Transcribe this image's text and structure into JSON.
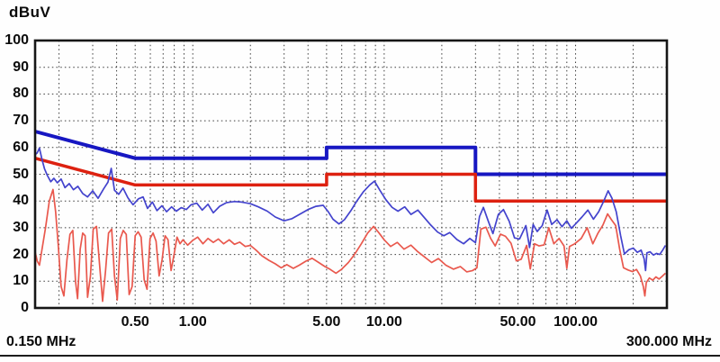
{
  "header": {
    "y_axis_unit": "dBuV"
  },
  "footer": {
    "x_start_label": "0.150 MHz",
    "x_end_label": "300.000 MHz"
  },
  "colors": {
    "limit_blue": "#1717c2",
    "limit_red": "#dd2110",
    "trace_blue": "#4343cd",
    "trace_red": "#e9584d",
    "grid": "#3a3a3a",
    "frame": "#161616"
  },
  "chart_data": {
    "type": "line",
    "title": "",
    "xlabel": "MHz",
    "ylabel": "dBuV",
    "x_scale": "log",
    "x_range_mhz": [
      0.15,
      300
    ],
    "y_range_dbuv": [
      0,
      100
    ],
    "grid": true,
    "legend": "none",
    "y_ticks": [
      {
        "label": "100",
        "value": 100
      },
      {
        "label": "90",
        "value": 90
      },
      {
        "label": "80",
        "value": 80
      },
      {
        "label": "70",
        "value": 70
      },
      {
        "label": "60",
        "value": 60
      },
      {
        "label": "50",
        "value": 50
      },
      {
        "label": "40",
        "value": 40
      },
      {
        "label": "30",
        "value": 30
      },
      {
        "label": "20",
        "value": 20
      },
      {
        "label": "10",
        "value": 10
      },
      {
        "label": "0",
        "value": 0
      }
    ],
    "x_ticks": [
      {
        "label": "0.50",
        "mhz": 0.5
      },
      {
        "label": "1.00",
        "mhz": 1.0
      },
      {
        "label": "5.00",
        "mhz": 5.0
      },
      {
        "label": "10.00",
        "mhz": 10.0
      },
      {
        "label": "50.00",
        "mhz": 50.0
      },
      {
        "label": "100.00",
        "mhz": 100.0
      }
    ],
    "x_gridlines_mhz": [
      0.2,
      0.3,
      0.4,
      0.5,
      0.6,
      0.7,
      0.8,
      0.9,
      1,
      2,
      3,
      4,
      5,
      6,
      7,
      8,
      9,
      10,
      20,
      30,
      40,
      50,
      60,
      70,
      80,
      90,
      100,
      200
    ],
    "y_gridlines_dbuv": [
      10,
      20,
      30,
      40,
      50,
      60,
      70,
      80,
      90
    ],
    "series": [
      {
        "name": "limit-line-upper-blue",
        "role": "limit",
        "color_key": "limit_blue",
        "width": 4,
        "points": [
          [
            0.15,
            66
          ],
          [
            0.5,
            56
          ],
          [
            5,
            56
          ],
          [
            5,
            60
          ],
          [
            30,
            60
          ],
          [
            30,
            50
          ],
          [
            300,
            50
          ]
        ]
      },
      {
        "name": "limit-line-lower-red",
        "role": "limit",
        "color_key": "limit_red",
        "width": 3.5,
        "points": [
          [
            0.15,
            56
          ],
          [
            0.5,
            46
          ],
          [
            5,
            46
          ],
          [
            5,
            50
          ],
          [
            30,
            50
          ],
          [
            30,
            40
          ],
          [
            300,
            40
          ]
        ]
      },
      {
        "name": "measurement-trace-blue",
        "role": "trace",
        "color_key": "trace_blue",
        "width": 1.7,
        "points": [
          [
            0.15,
            57.3
          ],
          [
            0.154,
            58.0
          ],
          [
            0.158,
            59.8
          ],
          [
            0.163,
            55.5
          ],
          [
            0.168,
            52.0
          ],
          [
            0.174,
            49.5
          ],
          [
            0.181,
            47.2
          ],
          [
            0.188,
            48.5
          ],
          [
            0.196,
            46.8
          ],
          [
            0.205,
            48.2
          ],
          [
            0.215,
            45.0
          ],
          [
            0.226,
            46.5
          ],
          [
            0.238,
            44.2
          ],
          [
            0.251,
            45.5
          ],
          [
            0.266,
            42.8
          ],
          [
            0.282,
            41.5
          ],
          [
            0.3,
            43.8
          ],
          [
            0.32,
            41.0
          ],
          [
            0.342,
            44.5
          ],
          [
            0.36,
            47.0
          ],
          [
            0.375,
            52.2
          ],
          [
            0.39,
            44.0
          ],
          [
            0.41,
            42.5
          ],
          [
            0.432,
            44.8
          ],
          [
            0.458,
            41.2
          ],
          [
            0.487,
            38.6
          ],
          [
            0.52,
            40.8
          ],
          [
            0.55,
            41.5
          ],
          [
            0.58,
            37.2
          ],
          [
            0.615,
            39.6
          ],
          [
            0.65,
            36.4
          ],
          [
            0.69,
            38.2
          ],
          [
            0.73,
            36.0
          ],
          [
            0.775,
            37.8
          ],
          [
            0.82,
            36.2
          ],
          [
            0.87,
            37.5
          ],
          [
            0.925,
            36.8
          ],
          [
            0.98,
            38.6
          ],
          [
            1.05,
            39.2
          ],
          [
            1.12,
            36.6
          ],
          [
            1.2,
            38.8
          ],
          [
            1.28,
            35.6
          ],
          [
            1.38,
            38.0
          ],
          [
            1.5,
            39.4
          ],
          [
            1.65,
            39.8
          ],
          [
            1.8,
            39.6
          ],
          [
            2.0,
            39.0
          ],
          [
            2.2,
            37.8
          ],
          [
            2.45,
            36.2
          ],
          [
            2.7,
            34.0
          ],
          [
            3.0,
            32.6
          ],
          [
            3.3,
            33.4
          ],
          [
            3.65,
            35.2
          ],
          [
            4.0,
            36.8
          ],
          [
            4.4,
            38.0
          ],
          [
            4.8,
            38.4
          ],
          [
            5.1,
            36.0
          ],
          [
            5.4,
            33.2
          ],
          [
            5.8,
            31.4
          ],
          [
            6.2,
            33.0
          ],
          [
            6.7,
            36.4
          ],
          [
            7.2,
            40.0
          ],
          [
            7.8,
            43.5
          ],
          [
            8.4,
            46.0
          ],
          [
            8.9,
            47.4
          ],
          [
            9.5,
            44.0
          ],
          [
            10.2,
            40.5
          ],
          [
            11.0,
            37.6
          ],
          [
            11.8,
            36.2
          ],
          [
            12.8,
            37.8
          ],
          [
            13.8,
            35.0
          ],
          [
            15.0,
            36.6
          ],
          [
            16.2,
            33.8
          ],
          [
            17.5,
            31.0
          ],
          [
            19.0,
            28.4
          ],
          [
            20.5,
            27.0
          ],
          [
            22.0,
            28.2
          ],
          [
            24.0,
            25.6
          ],
          [
            26.0,
            24.0
          ],
          [
            28.0,
            26.0
          ],
          [
            30.0,
            24.4
          ],
          [
            31.5,
            34.2
          ],
          [
            33.0,
            37.6
          ],
          [
            35.0,
            32.4
          ],
          [
            37.0,
            27.8
          ],
          [
            39.5,
            35.0
          ],
          [
            42.0,
            36.8
          ],
          [
            45.0,
            32.4
          ],
          [
            48.0,
            26.2
          ],
          [
            51.0,
            25.8
          ],
          [
            55.0,
            30.8
          ],
          [
            57.5,
            22.6
          ],
          [
            60.0,
            31.2
          ],
          [
            63.0,
            28.6
          ],
          [
            67.0,
            30.8
          ],
          [
            71.0,
            36.6
          ],
          [
            75.0,
            31.2
          ],
          [
            80.0,
            33.0
          ],
          [
            85.0,
            30.4
          ],
          [
            90.0,
            32.6
          ],
          [
            95.0,
            29.8
          ],
          [
            100,
            31.4
          ],
          [
            108,
            34.0
          ],
          [
            116,
            36.6
          ],
          [
            124,
            33.2
          ],
          [
            132,
            36.0
          ],
          [
            140,
            39.8
          ],
          [
            148,
            43.8
          ],
          [
            155,
            41.0
          ],
          [
            163,
            36.0
          ],
          [
            172,
            27.0
          ],
          [
            180,
            20.2
          ],
          [
            190,
            21.8
          ],
          [
            200,
            22.4
          ],
          [
            210,
            20.8
          ],
          [
            220,
            21.6
          ],
          [
            228,
            18.4
          ],
          [
            232,
            14.0
          ],
          [
            236,
            20.6
          ],
          [
            245,
            21.0
          ],
          [
            255,
            19.8
          ],
          [
            265,
            20.4
          ],
          [
            275,
            20.0
          ],
          [
            285,
            21.6
          ],
          [
            295,
            23.4
          ]
        ]
      },
      {
        "name": "measurement-trace-red",
        "role": "trace",
        "color_key": "trace_red",
        "width": 1.7,
        "points": [
          [
            0.15,
            21.0
          ],
          [
            0.154,
            17.5
          ],
          [
            0.158,
            16.0
          ],
          [
            0.163,
            22.0
          ],
          [
            0.17,
            30.0
          ],
          [
            0.178,
            40.0
          ],
          [
            0.186,
            44.3
          ],
          [
            0.192,
            36.0
          ],
          [
            0.198,
            24.0
          ],
          [
            0.205,
            8.0
          ],
          [
            0.212,
            4.5
          ],
          [
            0.22,
            18.0
          ],
          [
            0.228,
            27.5
          ],
          [
            0.236,
            29.0
          ],
          [
            0.244,
            10.0
          ],
          [
            0.25,
            3.5
          ],
          [
            0.258,
            22.0
          ],
          [
            0.266,
            28.0
          ],
          [
            0.274,
            27.0
          ],
          [
            0.282,
            4.0
          ],
          [
            0.292,
            12.0
          ],
          [
            0.302,
            29.5
          ],
          [
            0.314,
            30.5
          ],
          [
            0.326,
            16.0
          ],
          [
            0.338,
            2.5
          ],
          [
            0.35,
            14.0
          ],
          [
            0.363,
            28.0
          ],
          [
            0.377,
            29.5
          ],
          [
            0.39,
            12.0
          ],
          [
            0.403,
            3.0
          ],
          [
            0.418,
            26.0
          ],
          [
            0.433,
            29.0
          ],
          [
            0.449,
            27.5
          ],
          [
            0.465,
            5.0
          ],
          [
            0.482,
            8.0
          ],
          [
            0.5,
            27.0
          ],
          [
            0.518,
            28.5
          ],
          [
            0.537,
            26.5
          ],
          [
            0.557,
            10.5
          ],
          [
            0.577,
            7.0
          ],
          [
            0.598,
            26.0
          ],
          [
            0.62,
            28.0
          ],
          [
            0.643,
            25.0
          ],
          [
            0.667,
            12.0
          ],
          [
            0.691,
            18.0
          ],
          [
            0.716,
            27.0
          ],
          [
            0.742,
            25.5
          ],
          [
            0.77,
            14.0
          ],
          [
            0.798,
            20.0
          ],
          [
            0.827,
            26.5
          ],
          [
            0.857,
            24.0
          ],
          [
            0.889,
            25.5
          ],
          [
            0.94,
            23.5
          ],
          [
            1.0,
            25.3
          ],
          [
            1.06,
            26.5
          ],
          [
            1.13,
            24.0
          ],
          [
            1.2,
            26.0
          ],
          [
            1.28,
            24.5
          ],
          [
            1.36,
            25.8
          ],
          [
            1.45,
            24.0
          ],
          [
            1.55,
            25.5
          ],
          [
            1.65,
            23.8
          ],
          [
            1.76,
            24.6
          ],
          [
            1.88,
            23.0
          ],
          [
            2.0,
            23.4
          ],
          [
            2.15,
            21.5
          ],
          [
            2.3,
            19.5
          ],
          [
            2.5,
            17.8
          ],
          [
            2.7,
            16.5
          ],
          [
            2.9,
            15.0
          ],
          [
            3.1,
            16.2
          ],
          [
            3.35,
            14.8
          ],
          [
            3.6,
            16.0
          ],
          [
            3.9,
            17.5
          ],
          [
            4.2,
            18.6
          ],
          [
            4.55,
            17.0
          ],
          [
            4.9,
            15.5
          ],
          [
            5.2,
            14.5
          ],
          [
            5.6,
            13.0
          ],
          [
            6.0,
            14.5
          ],
          [
            6.5,
            17.0
          ],
          [
            7.0,
            20.0
          ],
          [
            7.6,
            24.0
          ],
          [
            8.2,
            28.0
          ],
          [
            8.8,
            30.5
          ],
          [
            9.4,
            28.0
          ],
          [
            10.0,
            25.5
          ],
          [
            10.8,
            23.0
          ],
          [
            11.7,
            24.5
          ],
          [
            12.7,
            22.0
          ],
          [
            13.8,
            23.5
          ],
          [
            15.0,
            21.0
          ],
          [
            16.3,
            19.0
          ],
          [
            17.7,
            17.0
          ],
          [
            19.2,
            18.5
          ],
          [
            21.0,
            16.0
          ],
          [
            23.0,
            14.5
          ],
          [
            25.0,
            15.5
          ],
          [
            27.0,
            13.5
          ],
          [
            29.0,
            14.0
          ],
          [
            30.5,
            15.0
          ],
          [
            32.0,
            29.5
          ],
          [
            34.0,
            30.2
          ],
          [
            36.0,
            26.0
          ],
          [
            38.0,
            23.2
          ],
          [
            40.5,
            27.6
          ],
          [
            43.0,
            26.8
          ],
          [
            46.0,
            24.2
          ],
          [
            49.0,
            17.6
          ],
          [
            52.0,
            18.2
          ],
          [
            55.5,
            23.4
          ],
          [
            58.0,
            14.6
          ],
          [
            61.0,
            24.0
          ],
          [
            64.5,
            23.2
          ],
          [
            68.5,
            23.6
          ],
          [
            72.5,
            30.0
          ],
          [
            77.0,
            24.0
          ],
          [
            82.0,
            26.0
          ],
          [
            87.0,
            23.2
          ],
          [
            90.0,
            14.8
          ],
          [
            93.0,
            23.0
          ],
          [
            99.0,
            24.0
          ],
          [
            107,
            26.0
          ],
          [
            115,
            30.0
          ],
          [
            123,
            24.0
          ],
          [
            131,
            28.0
          ],
          [
            139,
            31.0
          ],
          [
            147,
            35.2
          ],
          [
            154,
            33.0
          ],
          [
            162,
            30.8
          ],
          [
            170,
            22.0
          ],
          [
            178,
            15.0
          ],
          [
            188,
            14.2
          ],
          [
            198,
            13.6
          ],
          [
            208,
            14.4
          ],
          [
            218,
            12.0
          ],
          [
            226,
            8.0
          ],
          [
            230,
            4.5
          ],
          [
            234,
            9.5
          ],
          [
            243,
            11.2
          ],
          [
            253,
            10.4
          ],
          [
            263,
            11.6
          ],
          [
            273,
            10.8
          ],
          [
            283,
            11.8
          ],
          [
            295,
            13.0
          ]
        ]
      }
    ]
  }
}
